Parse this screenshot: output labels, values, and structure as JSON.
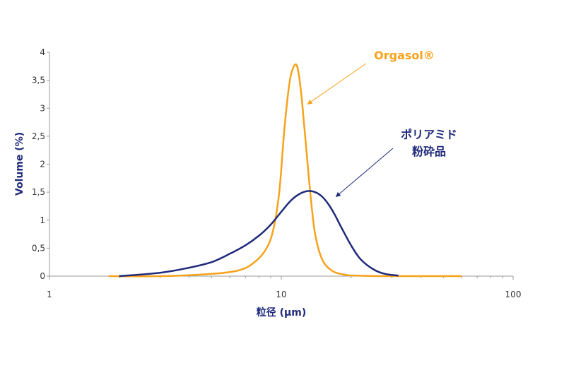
{
  "chart_data": {
    "type": "line",
    "title": "",
    "xlabel": "粒径 (μm)",
    "ylabel": "Volume (%)",
    "x_scale": "log",
    "xlim": [
      1,
      100
    ],
    "ylim": [
      0,
      4
    ],
    "x_ticks": [
      "1",
      "10",
      "100"
    ],
    "y_ticks": [
      "0",
      "0,5",
      "1",
      "1,5",
      "2",
      "2,5",
      "3",
      "3,5",
      "4"
    ],
    "grid": false,
    "legend": "none",
    "series": [
      {
        "name": "Orgasol®",
        "color": "#f7a21b",
        "x": [
          1.8,
          3,
          5,
          6.5,
          7.5,
          8.5,
          9.2,
          9.8,
          10.3,
          10.8,
          11.2,
          11.6,
          11.9,
          12.3,
          12.8,
          13.4,
          14,
          15,
          16.5,
          18.5,
          21,
          30,
          60
        ],
        "y": [
          0,
          0,
          0.04,
          0.1,
          0.22,
          0.45,
          0.8,
          1.5,
          2.6,
          3.4,
          3.7,
          3.78,
          3.6,
          3.1,
          2.3,
          1.4,
          0.75,
          0.3,
          0.1,
          0.03,
          0.01,
          0,
          0
        ]
      },
      {
        "name": "ポリアミド粉砕品",
        "color": "#1f2a7a",
        "x": [
          2,
          3,
          4,
          5,
          6,
          7,
          8,
          9,
          10,
          11,
          12,
          13,
          14,
          15,
          16,
          17,
          18,
          20,
          22,
          25,
          28,
          32
        ],
        "y": [
          0,
          0.06,
          0.15,
          0.25,
          0.4,
          0.55,
          0.72,
          0.92,
          1.15,
          1.35,
          1.47,
          1.52,
          1.5,
          1.42,
          1.28,
          1.1,
          0.9,
          0.55,
          0.3,
          0.12,
          0.04,
          0.01
        ]
      }
    ],
    "annotations": [
      {
        "text": "Orgasol®",
        "color": "#f7a21b",
        "series": "Orgasol®"
      },
      {
        "lines": [
          "ポリアミド",
          "粉砕品"
        ],
        "color": "#1f2a7a",
        "series": "ポリアミド粉砕品"
      }
    ]
  }
}
